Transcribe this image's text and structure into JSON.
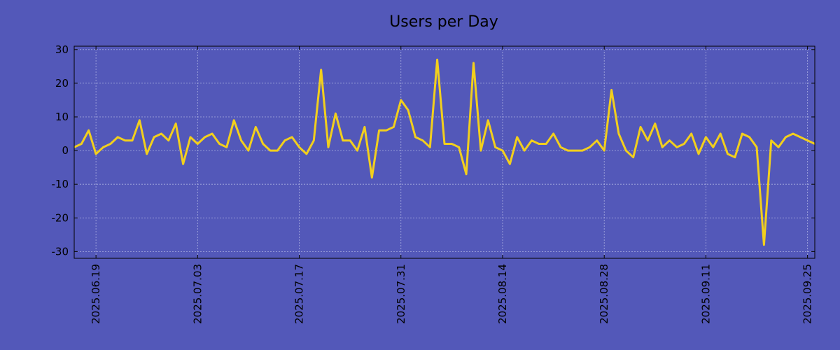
{
  "chart_data": {
    "type": "line",
    "title": "Users per Day",
    "xlabel": "",
    "ylabel": "",
    "ylim": [
      -32,
      31
    ],
    "yticks": [
      -30,
      -20,
      -10,
      0,
      10,
      20,
      30
    ],
    "xlim": [
      "2025-06-16",
      "2025-09-26"
    ],
    "xticks": [
      "2025.06.19",
      "2025.07.03",
      "2025.07.17",
      "2025.07.31",
      "2025.08.14",
      "2025.08.28",
      "2025.09.11",
      "2025.09.25"
    ],
    "grid": true,
    "colors": {
      "background": "#5358b9",
      "line": "#f2cf1d"
    },
    "series": [
      {
        "name": "Users",
        "start_date": "2025-06-16",
        "values": [
          1,
          2,
          6,
          -1,
          1,
          2,
          4,
          3,
          3,
          9,
          -1,
          4,
          5,
          3,
          8,
          -4,
          4,
          2,
          4,
          5,
          2,
          1,
          9,
          3,
          0,
          7,
          2,
          0,
          0,
          3,
          4,
          1,
          -1,
          3,
          24,
          1,
          11,
          3,
          3,
          0,
          7,
          -8,
          6,
          6,
          7,
          15,
          12,
          4,
          3,
          1,
          27,
          2,
          2,
          1,
          -7,
          26,
          0,
          9,
          1,
          0,
          -4,
          4,
          0,
          3,
          2,
          2,
          5,
          1,
          0,
          0,
          0,
          1,
          3,
          0,
          18,
          5,
          0,
          -2,
          7,
          3,
          8,
          1,
          3,
          1,
          2,
          5,
          -1,
          4,
          1,
          5,
          -1,
          -2,
          5,
          4,
          1,
          -28,
          3,
          1,
          4,
          5,
          4,
          3,
          2
        ]
      }
    ]
  }
}
